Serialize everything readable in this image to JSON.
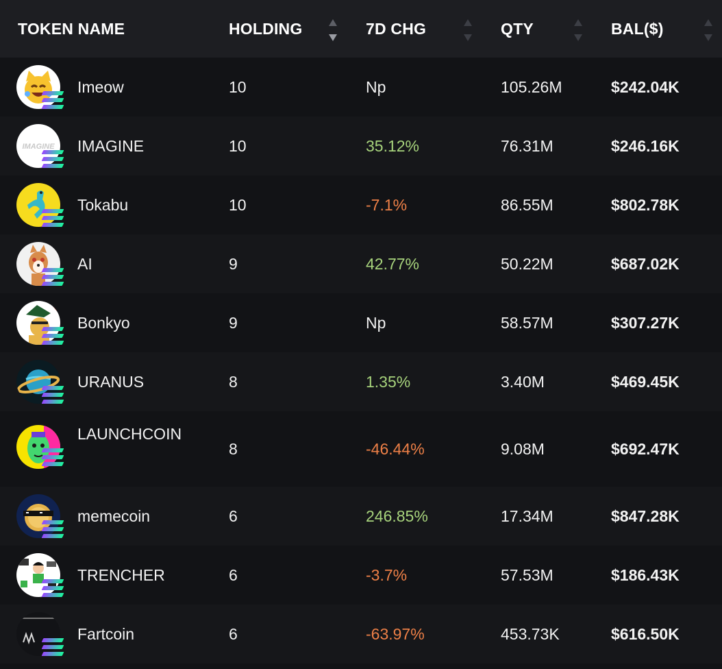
{
  "columns": {
    "token_name": "TOKEN NAME",
    "holding": "HOLDING",
    "change_7d": "7D CHG",
    "qty": "QTY",
    "balance": "BAL($)"
  },
  "sort": {
    "active_column": "holding",
    "direction": "descending"
  },
  "colors": {
    "positive": "#a7d37c",
    "negative": "#ee8047",
    "neutral": "#f2f2f2"
  },
  "rows": [
    {
      "name": "Imeow",
      "holding": "10",
      "change": "Np",
      "trend": "neutral",
      "qty": "105.26M",
      "balance": "$242.04K",
      "icon": "laughing-cat-icon"
    },
    {
      "name": "IMAGINE",
      "holding": "10",
      "change": "35.12%",
      "trend": "positive",
      "qty": "76.31M",
      "balance": "$246.16K",
      "icon": "imagine-logo-icon"
    },
    {
      "name": "Tokabu",
      "holding": "10",
      "change": "-7.1%",
      "trend": "negative",
      "qty": "86.55M",
      "balance": "$802.78K",
      "icon": "dinosaur-icon"
    },
    {
      "name": "AI",
      "holding": "9",
      "change": "42.77%",
      "trend": "positive",
      "qty": "50.22M",
      "balance": "$687.02K",
      "icon": "shiba-dog-icon"
    },
    {
      "name": "Bonkyo",
      "holding": "9",
      "change": "Np",
      "trend": "neutral",
      "qty": "58.57M",
      "balance": "$307.27K",
      "icon": "samurai-dog-icon"
    },
    {
      "name": "URANUS",
      "holding": "8",
      "change": "1.35%",
      "trend": "positive",
      "qty": "3.40M",
      "balance": "$469.45K",
      "icon": "planet-icon"
    },
    {
      "name": "LAUNCHCOIN",
      "holding": "8",
      "change": "-46.44%",
      "trend": "negative",
      "qty": "9.08M",
      "balance": "$692.47K",
      "icon": "pop-art-face-icon"
    },
    {
      "name": "memecoin",
      "holding": "6",
      "change": "246.85%",
      "trend": "positive",
      "qty": "17.34M",
      "balance": "$847.28K",
      "icon": "sunglasses-coin-icon"
    },
    {
      "name": "TRENCHER",
      "holding": "6",
      "change": "-3.7%",
      "trend": "negative",
      "qty": "57.53M",
      "balance": "$186.43K",
      "icon": "cartoon-collage-icon"
    },
    {
      "name": "Fartcoin",
      "holding": "6",
      "change": "-63.97%",
      "trend": "negative",
      "qty": "453.73K",
      "balance": "$616.50K",
      "icon": "fartcoin-logo-icon"
    }
  ]
}
